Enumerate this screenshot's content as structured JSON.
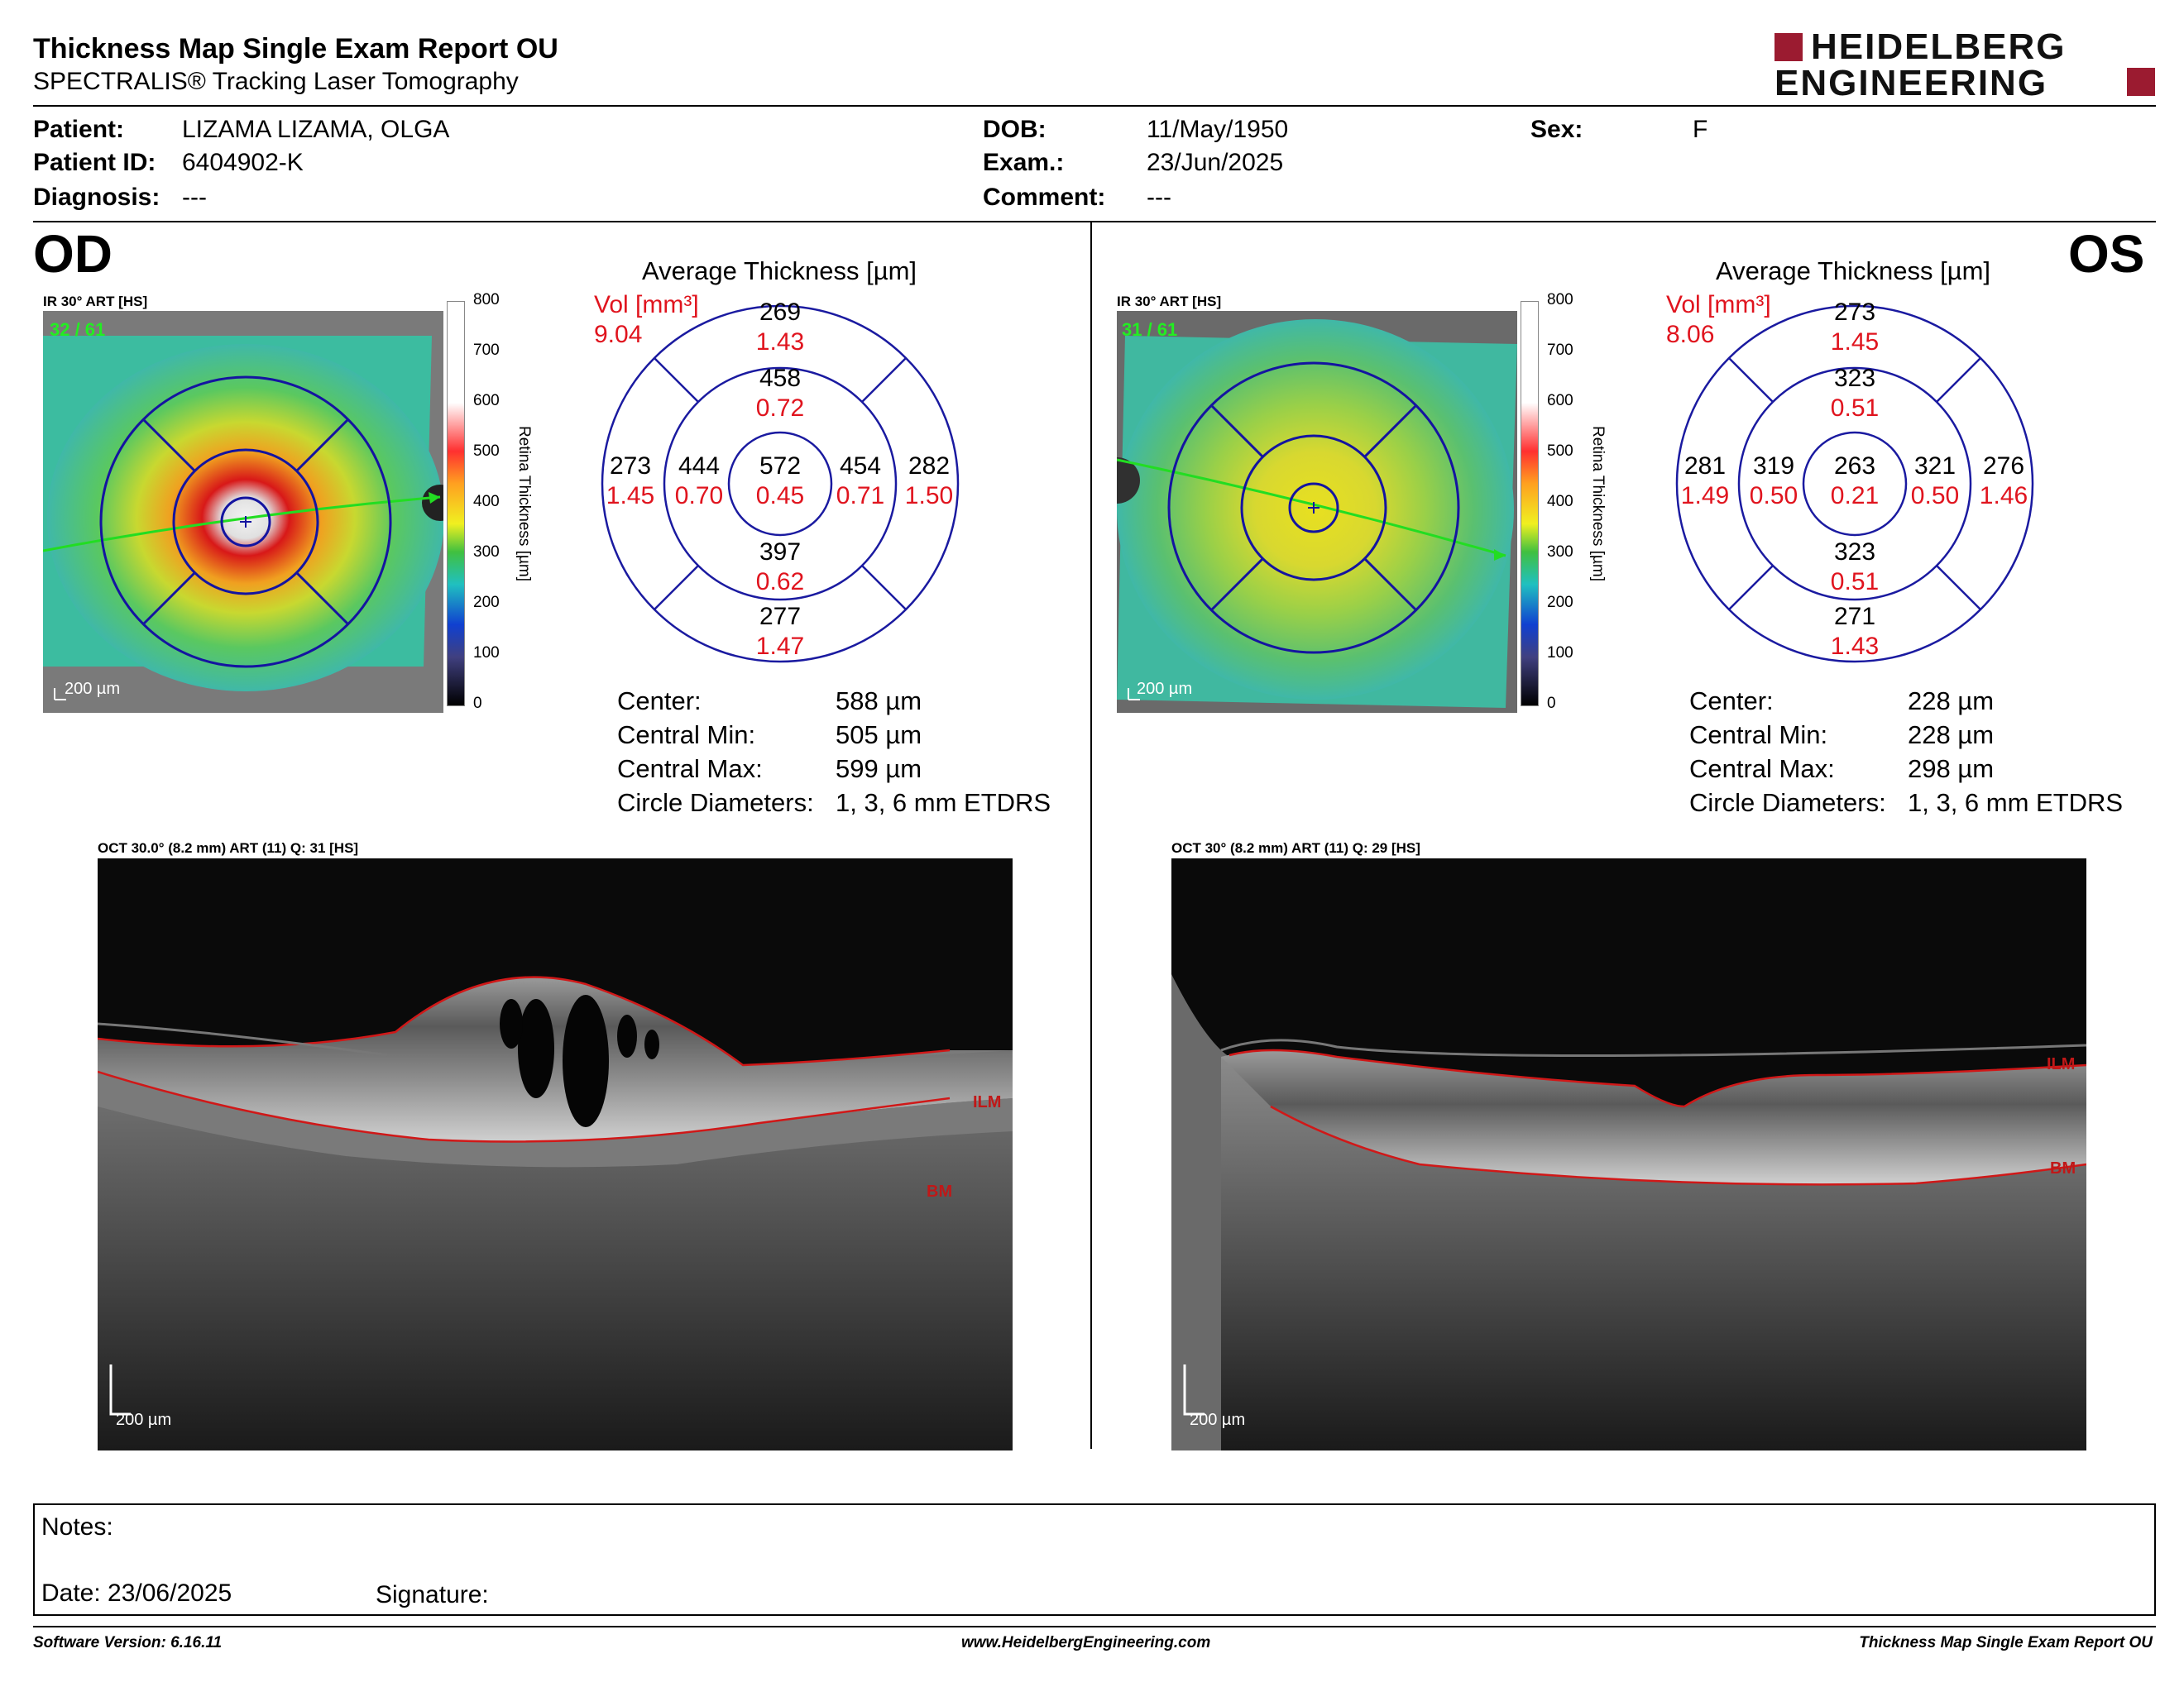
{
  "header": {
    "title": "Thickness Map Single Exam Report OU",
    "subtitle": "SPECTRALIS® Tracking Laser Tomography",
    "logo_line1": "HEIDELBERG",
    "logo_line2": "ENGINEERING",
    "logo_accent_color": "#9b1b30"
  },
  "patient": {
    "patient_label": "Patient:",
    "patient_value": "LIZAMA LIZAMA, OLGA",
    "id_label": "Patient ID:",
    "id_value": "6404902-K",
    "diagnosis_label": "Diagnosis:",
    "diagnosis_value": "---",
    "dob_label": "DOB:",
    "dob_value": "11/May/1950",
    "exam_label": "Exam.:",
    "exam_value": "23/Jun/2025",
    "comment_label": "Comment:",
    "comment_value": "---",
    "sex_label": "Sex:",
    "sex_value": "F"
  },
  "colorbar": {
    "ticks": [
      "800",
      "700",
      "600",
      "500",
      "400",
      "300",
      "200",
      "100",
      "0"
    ],
    "label": "Retina Thickness [µm]"
  },
  "od": {
    "eye_label": "OD",
    "ir_label": "IR 30° ART [HS]",
    "quality": "32 / 61",
    "scale": "200 µm",
    "avg_title": "Average Thickness [µm]",
    "vol_label": "Vol [mm³]",
    "vol_value": "9.04",
    "sectors": {
      "top_outer": [
        "269",
        "1.43"
      ],
      "top_inner": [
        "458",
        "0.72"
      ],
      "center": [
        "572",
        "0.45"
      ],
      "nasal_outer": [
        "273",
        "1.45"
      ],
      "nasal_inner": [
        "444",
        "0.70"
      ],
      "temp_inner": [
        "454",
        "0.71"
      ],
      "temp_outer": [
        "282",
        "1.50"
      ],
      "bottom_inner": [
        "397",
        "0.62"
      ],
      "bottom_outer": [
        "277",
        "1.47"
      ]
    },
    "stats": [
      {
        "label": "Center:",
        "value": "588 µm"
      },
      {
        "label": "Central Min:",
        "value": "505 µm"
      },
      {
        "label": "Central Max:",
        "value": "599 µm"
      },
      {
        "label": "Circle Diameters:",
        "value": "1, 3, 6 mm ETDRS"
      }
    ],
    "oct_label": "OCT 30.0° (8.2 mm) ART (11) Q: 31 [HS]",
    "oct_scale": "200 µm",
    "ilm": "ILM",
    "bm": "BM"
  },
  "os": {
    "eye_label": "OS",
    "ir_label": "IR 30° ART [HS]",
    "quality": "31 / 61",
    "scale": "200 µm",
    "avg_title": "Average Thickness [µm]",
    "vol_label": "Vol [mm³]",
    "vol_value": "8.06",
    "sectors": {
      "top_outer": [
        "273",
        "1.45"
      ],
      "top_inner": [
        "323",
        "0.51"
      ],
      "center": [
        "263",
        "0.21"
      ],
      "nasal_outer": [
        "281",
        "1.49"
      ],
      "nasal_inner": [
        "319",
        "0.50"
      ],
      "temp_inner": [
        "321",
        "0.50"
      ],
      "temp_outer": [
        "276",
        "1.46"
      ],
      "bottom_inner": [
        "323",
        "0.51"
      ],
      "bottom_outer": [
        "271",
        "1.43"
      ]
    },
    "stats": [
      {
        "label": "Center:",
        "value": "228 µm"
      },
      {
        "label": "Central Min:",
        "value": "228 µm"
      },
      {
        "label": "Central Max:",
        "value": "298 µm"
      },
      {
        "label": "Circle Diameters:",
        "value": "1, 3, 6 mm ETDRS"
      }
    ],
    "oct_label": "OCT 30° (8.2 mm) ART (11) Q: 29 [HS]",
    "oct_scale": "200 µm",
    "ilm": "ILM",
    "bm": "BM"
  },
  "notes": {
    "notes_label": "Notes:",
    "date_label": "Date: 23/06/2025",
    "signature_label": "Signature:"
  },
  "footer": {
    "software": "Software Version: 6.16.11",
    "website": "www.HeidelbergEngineering.com",
    "report_name": "Thickness Map Single Exam Report OU"
  },
  "colors": {
    "value_red": "#e0141e",
    "grid_blue": "#1a1aa0"
  }
}
